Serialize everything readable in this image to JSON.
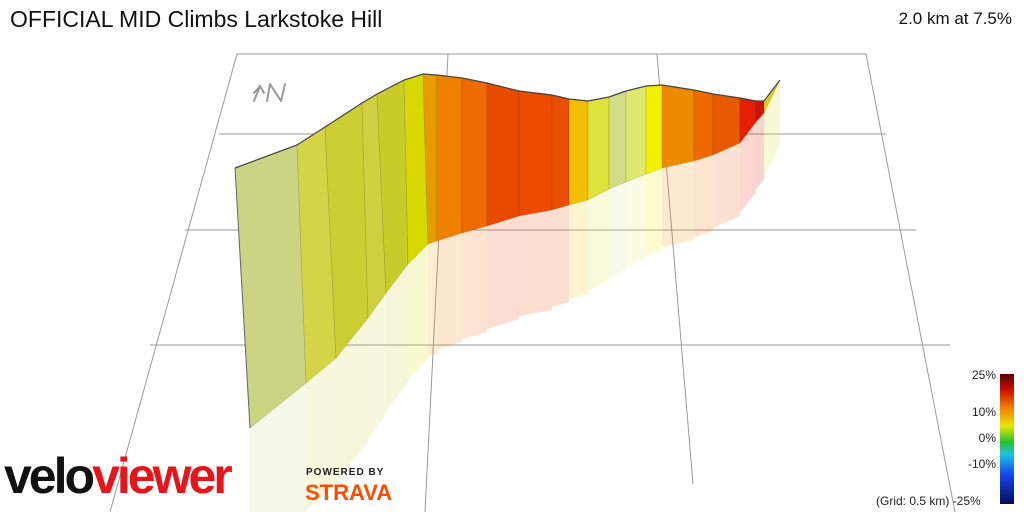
{
  "header": {
    "title": "OFFICIAL MID Climbs Larkstoke Hill",
    "stats": "2.0 km at 7.5%"
  },
  "compass": {
    "label": "↑N",
    "icon": "north-arrow-icon"
  },
  "legend": {
    "labels": [
      "25%",
      "10%",
      "0%",
      "-10%",
      "-25%"
    ],
    "grid_note": "(Grid: 0.5 km)"
  },
  "branding": {
    "velo": "velo",
    "viewer": "viewer",
    "powered_by": "POWERED BY",
    "strava": "STRAVA"
  },
  "colors": {
    "grade_high": "#8b0000",
    "grade_mid_high": "#e83a00",
    "grade_10": "#f07a00",
    "grade_5": "#e6e600",
    "grade_0": "#2eb82e",
    "grade_neg": "#0a6ef0",
    "grade_low": "#0a0a6a",
    "viewer_red": "#e8141c",
    "strava_orange": "#fc4c02"
  }
}
